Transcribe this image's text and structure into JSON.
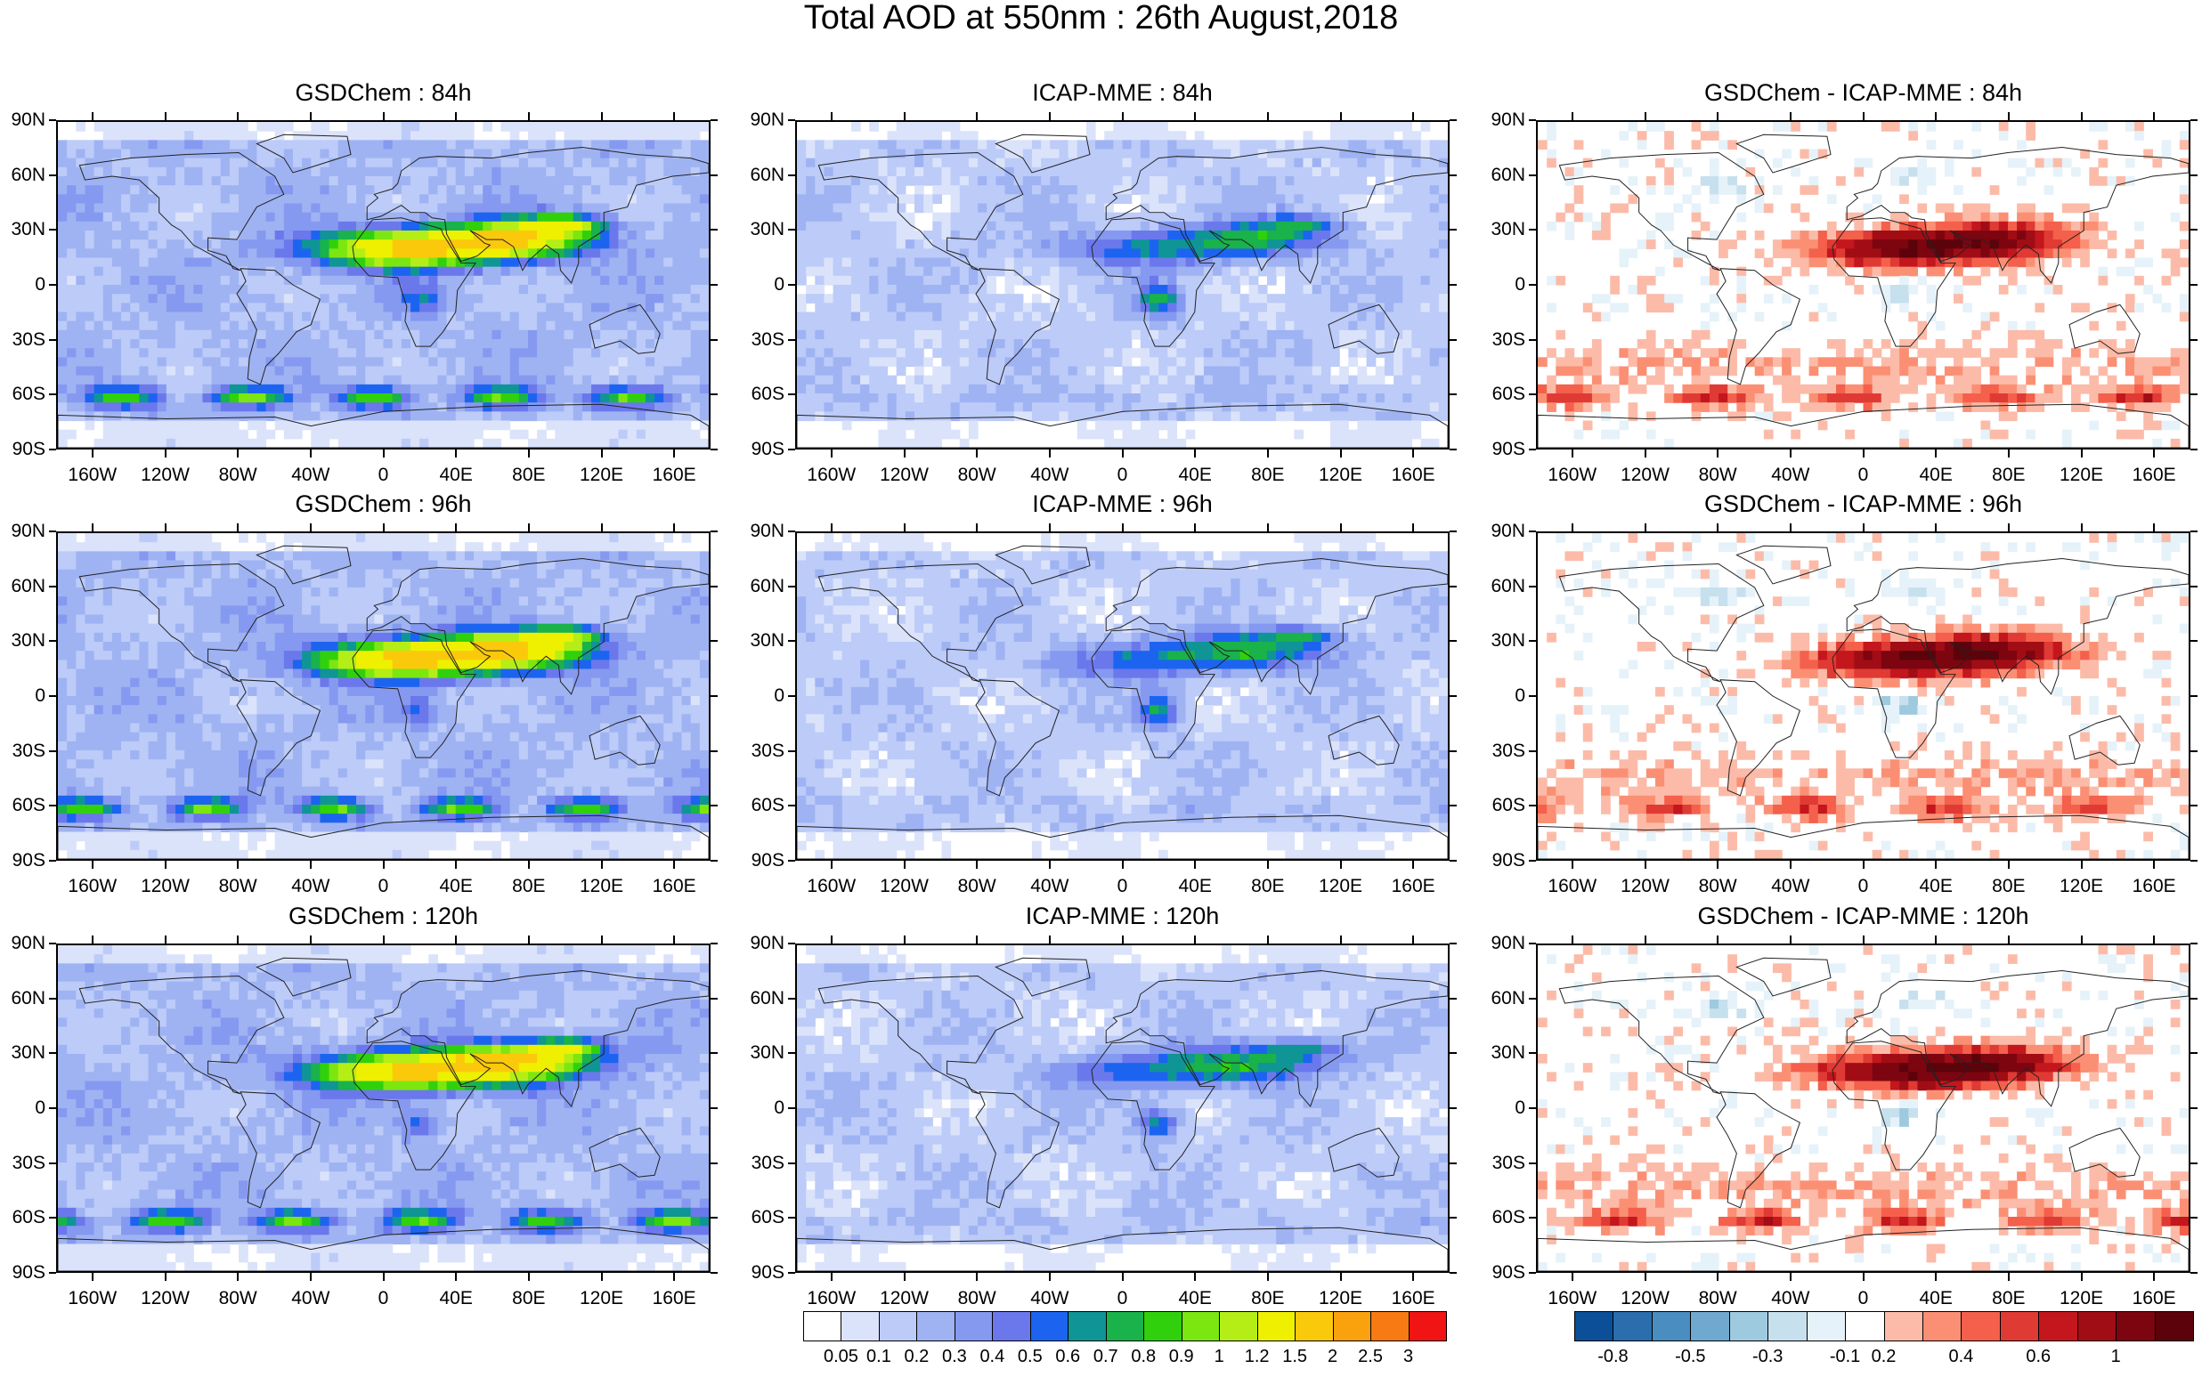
{
  "title": "Total AOD at 550nm : 26th August,2018",
  "panels": [
    {
      "title": "GSDChem : 84h",
      "kind": "aod_gsd"
    },
    {
      "title": "ICAP-MME : 84h",
      "kind": "aod_icap"
    },
    {
      "title": "GSDChem - ICAP-MME : 84h",
      "kind": "diff"
    },
    {
      "title": "GSDChem : 96h",
      "kind": "aod_gsd"
    },
    {
      "title": "ICAP-MME : 96h",
      "kind": "aod_icap"
    },
    {
      "title": "GSDChem - ICAP-MME : 96h",
      "kind": "diff"
    },
    {
      "title": "GSDChem : 120h",
      "kind": "aod_gsd"
    },
    {
      "title": "ICAP-MME : 120h",
      "kind": "aod_icap"
    },
    {
      "title": "GSDChem - ICAP-MME : 120h",
      "kind": "diff"
    }
  ],
  "lat_labels": [
    "90N",
    "60N",
    "30N",
    "0",
    "30S",
    "60S",
    "90S"
  ],
  "lon_labels": [
    "160W",
    "120W",
    "80W",
    "40W",
    "0",
    "40E",
    "80E",
    "120E",
    "160E"
  ],
  "aod_colorbar": {
    "labels": [
      "0.05",
      "0.1",
      "0.2",
      "0.3",
      "0.4",
      "0.5",
      "0.6",
      "0.7",
      "0.8",
      "0.9",
      "1",
      "1.2",
      "1.5",
      "2",
      "2.5",
      "3"
    ],
    "colors": [
      "#ffffff",
      "#dbe3fb",
      "#bccbf8",
      "#9fb3f3",
      "#8699f0",
      "#6b78ec",
      "#1c64f0",
      "#0f9595",
      "#19b24b",
      "#30d10c",
      "#7ce610",
      "#b4ee16",
      "#eef000",
      "#fbc90b",
      "#f9a20e",
      "#f77a12",
      "#f01414"
    ]
  },
  "diff_colorbar": {
    "labels": [
      "-0.8",
      "-0.5",
      "-0.3",
      "-0.1",
      "0.2",
      "0.4",
      "0.6",
      "1"
    ],
    "colors": [
      "#0a4f98",
      "#2a6eae",
      "#4a8ec1",
      "#6fa9d0",
      "#9ecae0",
      "#c6e0ee",
      "#e6f2f9",
      "#ffffff",
      "#fcbba8",
      "#fb8f74",
      "#f4604b",
      "#e03a34",
      "#c3161d",
      "#a10d15",
      "#7c0510",
      "#5c020a"
    ]
  }
}
